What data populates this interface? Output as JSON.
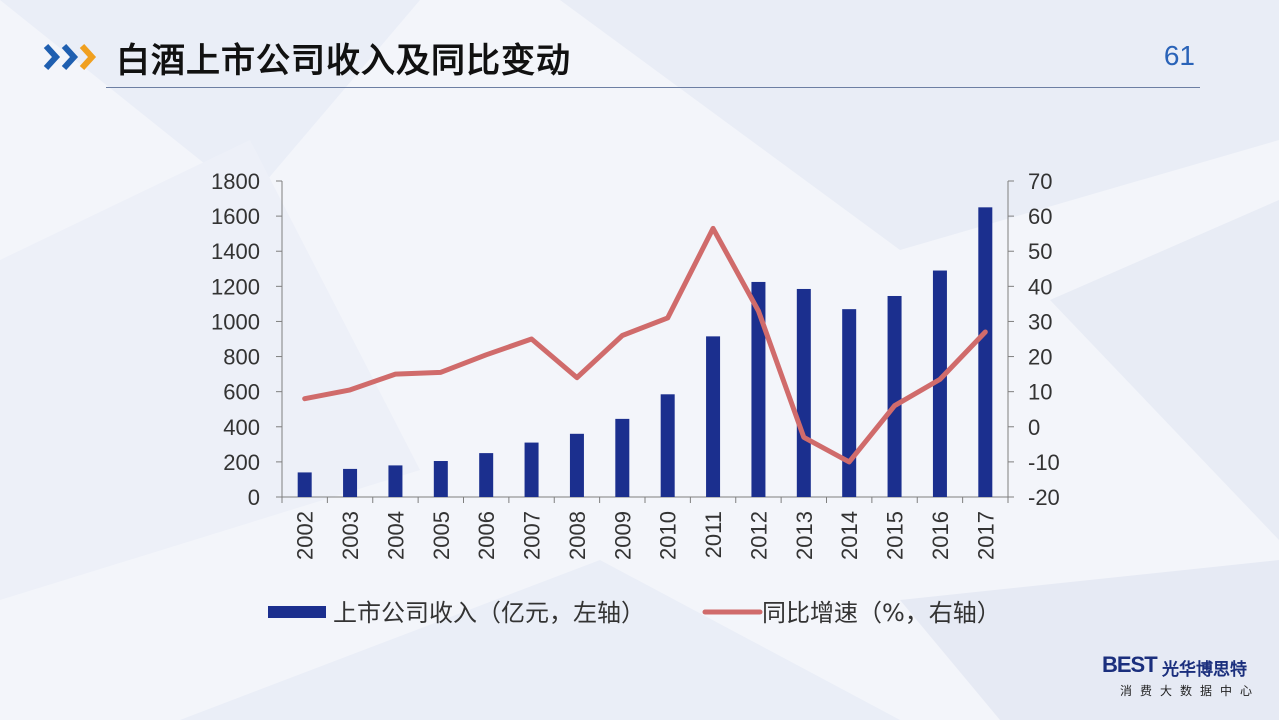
{
  "slide": {
    "title": "白酒上市公司收入及同比变动",
    "page_number": "61"
  },
  "logo": {
    "best": "BEST",
    "brand": "光华博思特",
    "tagline": "消费大数据中心"
  },
  "colors": {
    "bar": "#1b2f8e",
    "line": "#d06b6b",
    "arrow_blue": "#1f5fb0",
    "arrow_orange": "#f0a020",
    "axis": "#7f7f7f",
    "text": "#333333"
  },
  "chart_data": {
    "type": "bar",
    "categories": [
      "2002",
      "2003",
      "2004",
      "2005",
      "2006",
      "2007",
      "2008",
      "2009",
      "2010",
      "2011",
      "2012",
      "2013",
      "2014",
      "2015",
      "2016",
      "2017"
    ],
    "series": [
      {
        "name": "上市公司收入（亿元，左轴）",
        "type": "bar",
        "axis": "left",
        "values": [
          140,
          160,
          180,
          205,
          250,
          310,
          360,
          445,
          585,
          915,
          1225,
          1185,
          1070,
          1145,
          1290,
          1650
        ]
      },
      {
        "name": "同比增速（%，右轴）",
        "type": "line",
        "axis": "right",
        "values": [
          8,
          10.5,
          15,
          15.5,
          20.5,
          25,
          14,
          26,
          31,
          56.5,
          33,
          -3,
          -10,
          6,
          13.5,
          27
        ]
      }
    ],
    "y_left": {
      "min": 0,
      "max": 1800,
      "ticks": [
        0,
        200,
        400,
        600,
        800,
        1000,
        1200,
        1400,
        1600,
        1800
      ]
    },
    "y_right": {
      "min": -20,
      "max": 70,
      "ticks": [
        -20,
        -10,
        0,
        10,
        20,
        30,
        40,
        50,
        60,
        70
      ]
    },
    "grid": false,
    "legend_position": "bottom"
  }
}
